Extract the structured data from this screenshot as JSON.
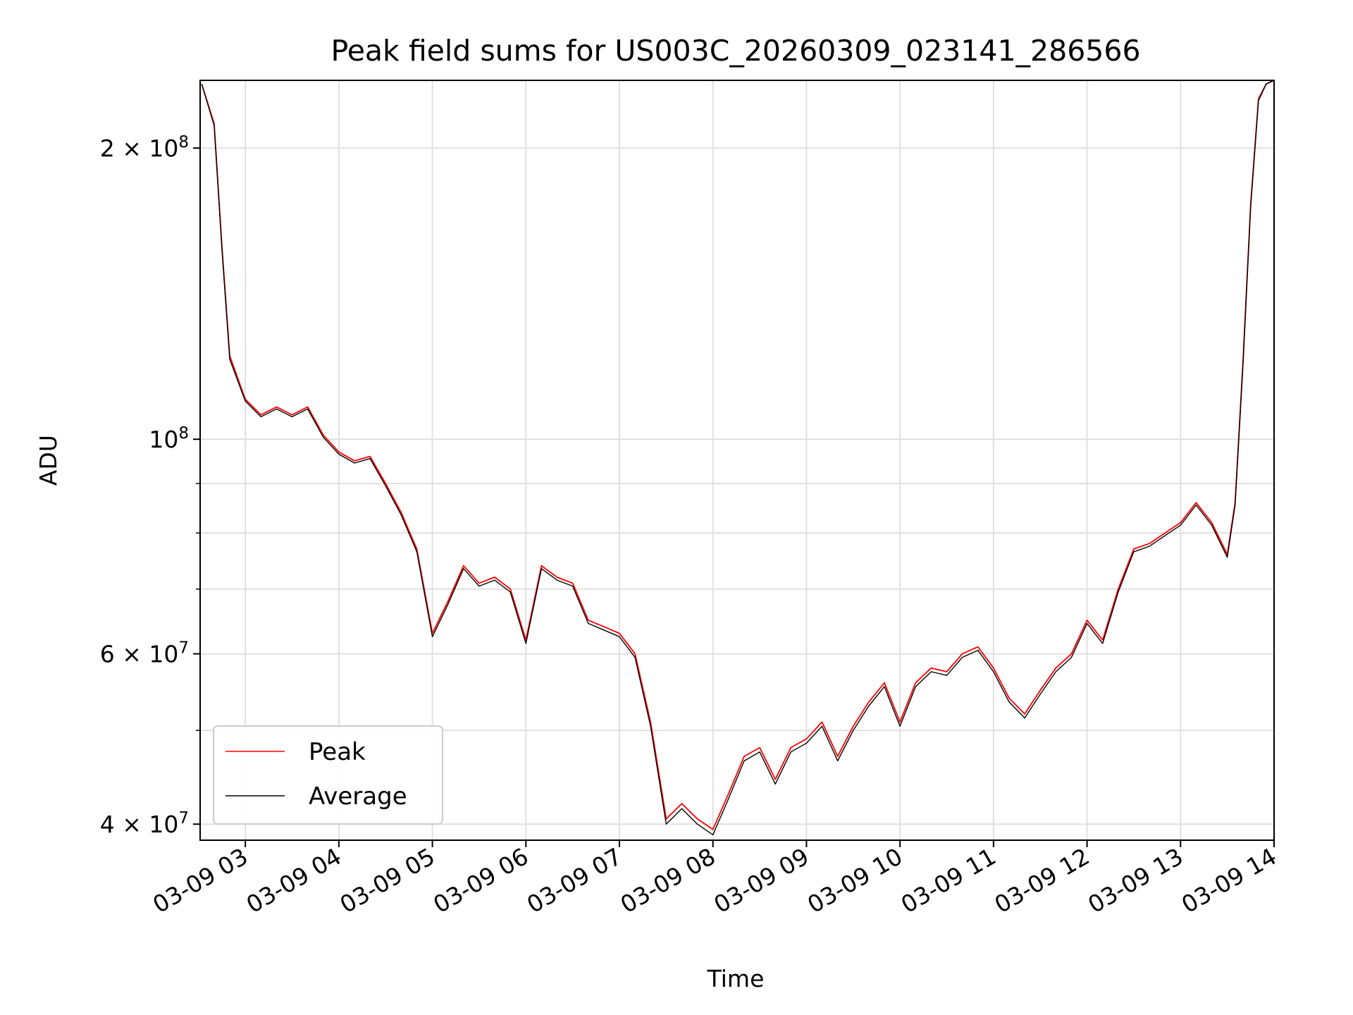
{
  "chart_data": {
    "type": "line",
    "title": "Peak field sums for US003C_20260309_023141_286566",
    "xlabel": "Time",
    "ylabel": "ADU",
    "yscale": "log",
    "xlim": [
      "03-09 02:31",
      "03-09 14:00"
    ],
    "ylim": [
      38500000,
      235000000
    ],
    "grid": true,
    "legend_position": "lower-left",
    "x_ticks": [
      "03-09 03",
      "03-09 04",
      "03-09 05",
      "03-09 06",
      "03-09 07",
      "03-09 08",
      "03-09 09",
      "03-09 10",
      "03-09 11",
      "03-09 12",
      "03-09 13",
      "03-09 14"
    ],
    "y_ticks": [
      {
        "value": 200000000,
        "mantissa": "2",
        "exponent": "8"
      },
      {
        "value": 100000000,
        "mantissa": "",
        "exponent": "8"
      },
      {
        "value": 60000000,
        "mantissa": "6",
        "exponent": "7"
      },
      {
        "value": 40000000,
        "mantissa": "4",
        "exponent": "7"
      }
    ],
    "x": [
      "03-09 02:32",
      "03-09 02:40",
      "03-09 02:45",
      "03-09 02:50",
      "03-09 03:00",
      "03-09 03:10",
      "03-09 03:20",
      "03-09 03:30",
      "03-09 03:40",
      "03-09 03:50",
      "03-09 04:00",
      "03-09 04:10",
      "03-09 04:20",
      "03-09 04:30",
      "03-09 04:40",
      "03-09 04:50",
      "03-09 05:00",
      "03-09 05:10",
      "03-09 05:20",
      "03-09 05:30",
      "03-09 05:40",
      "03-09 05:50",
      "03-09 06:00",
      "03-09 06:10",
      "03-09 06:20",
      "03-09 06:30",
      "03-09 06:40",
      "03-09 06:50",
      "03-09 07:00",
      "03-09 07:10",
      "03-09 07:20",
      "03-09 07:30",
      "03-09 07:40",
      "03-09 07:50",
      "03-09 08:00",
      "03-09 08:10",
      "03-09 08:20",
      "03-09 08:30",
      "03-09 08:40",
      "03-09 08:50",
      "03-09 09:00",
      "03-09 09:10",
      "03-09 09:20",
      "03-09 09:30",
      "03-09 09:40",
      "03-09 09:50",
      "03-09 10:00",
      "03-09 10:10",
      "03-09 10:20",
      "03-09 10:30",
      "03-09 10:40",
      "03-09 10:50",
      "03-09 11:00",
      "03-09 11:10",
      "03-09 11:20",
      "03-09 11:30",
      "03-09 11:40",
      "03-09 11:50",
      "03-09 12:00",
      "03-09 12:10",
      "03-09 12:20",
      "03-09 12:30",
      "03-09 12:40",
      "03-09 12:50",
      "03-09 13:00",
      "03-09 13:10",
      "03-09 13:20",
      "03-09 13:30",
      "03-09 13:35",
      "03-09 13:40",
      "03-09 13:45",
      "03-09 13:50",
      "03-09 13:55",
      "03-09 14:00"
    ],
    "series": [
      {
        "name": "Peak",
        "color": "#ff0000",
        "values": [
          233000000,
          212000000,
          158000000,
          122000000,
          110000000,
          106000000,
          108000000,
          106000000,
          108000000,
          101000000,
          97000000,
          95000000,
          96000000,
          90000000,
          84000000,
          77000000,
          63000000,
          68000000,
          74000000,
          71000000,
          72000000,
          70000000,
          62000000,
          74000000,
          72000000,
          71000000,
          65000000,
          64000000,
          63000000,
          60000000,
          51000000,
          40500000,
          42000000,
          40500000,
          39500000,
          43000000,
          47000000,
          48000000,
          44500000,
          48000000,
          49000000,
          51000000,
          47000000,
          50500000,
          53500000,
          56000000,
          51000000,
          56000000,
          58000000,
          57500000,
          60000000,
          61000000,
          58000000,
          54000000,
          52000000,
          55000000,
          58000000,
          60000000,
          65000000,
          62000000,
          70000000,
          77000000,
          78000000,
          80000000,
          82000000,
          86000000,
          82000000,
          76000000,
          86000000,
          120000000,
          175000000,
          225000000,
          233000000,
          235000000
        ]
      },
      {
        "name": "Average",
        "color": "#000000",
        "values": [
          233000000,
          211000000,
          157000000,
          121000000,
          109500000,
          105500000,
          107500000,
          105500000,
          107500000,
          100500000,
          96500000,
          94500000,
          95500000,
          89500000,
          83500000,
          76500000,
          62500000,
          67500000,
          73500000,
          70500000,
          71500000,
          69500000,
          61500000,
          73500000,
          71500000,
          70500000,
          64500000,
          63500000,
          62500000,
          59500000,
          50500000,
          40000000,
          41500000,
          40000000,
          39000000,
          42500000,
          46500000,
          47500000,
          44000000,
          47500000,
          48500000,
          50500000,
          46500000,
          50000000,
          53000000,
          55500000,
          50500000,
          55500000,
          57500000,
          57000000,
          59500000,
          60500000,
          57500000,
          53500000,
          51500000,
          54500000,
          57500000,
          59500000,
          64500000,
          61500000,
          69500000,
          76500000,
          77500000,
          79500000,
          81500000,
          85500000,
          81500000,
          75500000,
          85500000,
          119000000,
          174000000,
          224000000,
          233000000,
          235000000
        ]
      }
    ]
  }
}
